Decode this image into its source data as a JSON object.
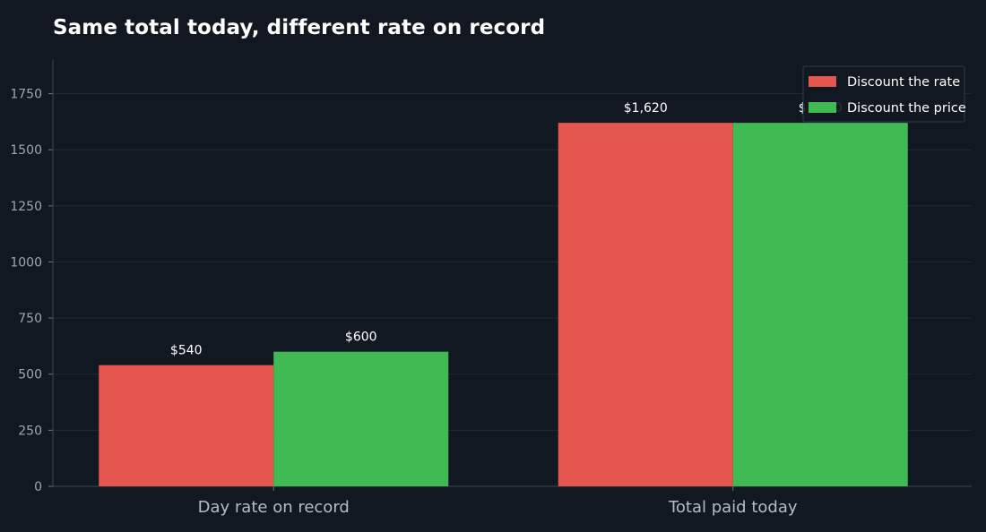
{
  "chart_data": {
    "type": "bar",
    "title": "Same total today, different rate on record",
    "categories": [
      "Day rate on record",
      "Total paid today"
    ],
    "series": [
      {
        "name": "Discount the rate",
        "values": [
          540,
          1620
        ],
        "labels": [
          "$540",
          "$1,620"
        ],
        "color": "#e5574e"
      },
      {
        "name": "Discount the price",
        "values": [
          600,
          1620
        ],
        "labels": [
          "$600",
          "$1,620"
        ],
        "color": "#40bb53"
      }
    ],
    "ylim": [
      0,
      1900
    ],
    "yticks": [
      0,
      250,
      500,
      750,
      1000,
      1250,
      1500,
      1750
    ],
    "xlabel": "",
    "ylabel": "",
    "grid": true,
    "legend_position": "top-right"
  }
}
